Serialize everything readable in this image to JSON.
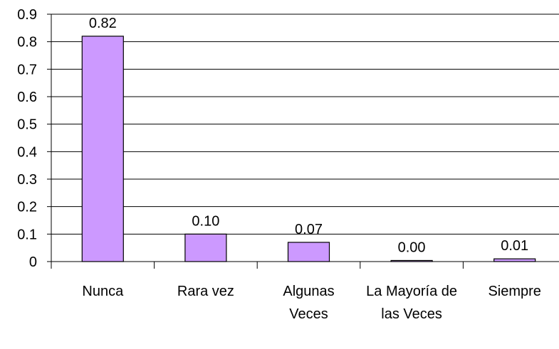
{
  "chart_data": {
    "type": "bar",
    "categories": [
      "Nunca",
      "Rara vez",
      "Algunas Veces",
      "La Mayoría de las Veces",
      "Siempre"
    ],
    "values": [
      0.82,
      0.1,
      0.07,
      0.004,
      0.01
    ],
    "value_labels": [
      "0.82",
      "0.10",
      "0.07",
      "0.00",
      "0.01"
    ],
    "color": "#cc99ff",
    "ylim": [
      0,
      0.9
    ],
    "yticks": [
      0,
      0.1,
      0.2,
      0.3,
      0.4,
      0.5,
      0.6,
      0.7,
      0.8,
      0.9
    ],
    "grid": true
  }
}
